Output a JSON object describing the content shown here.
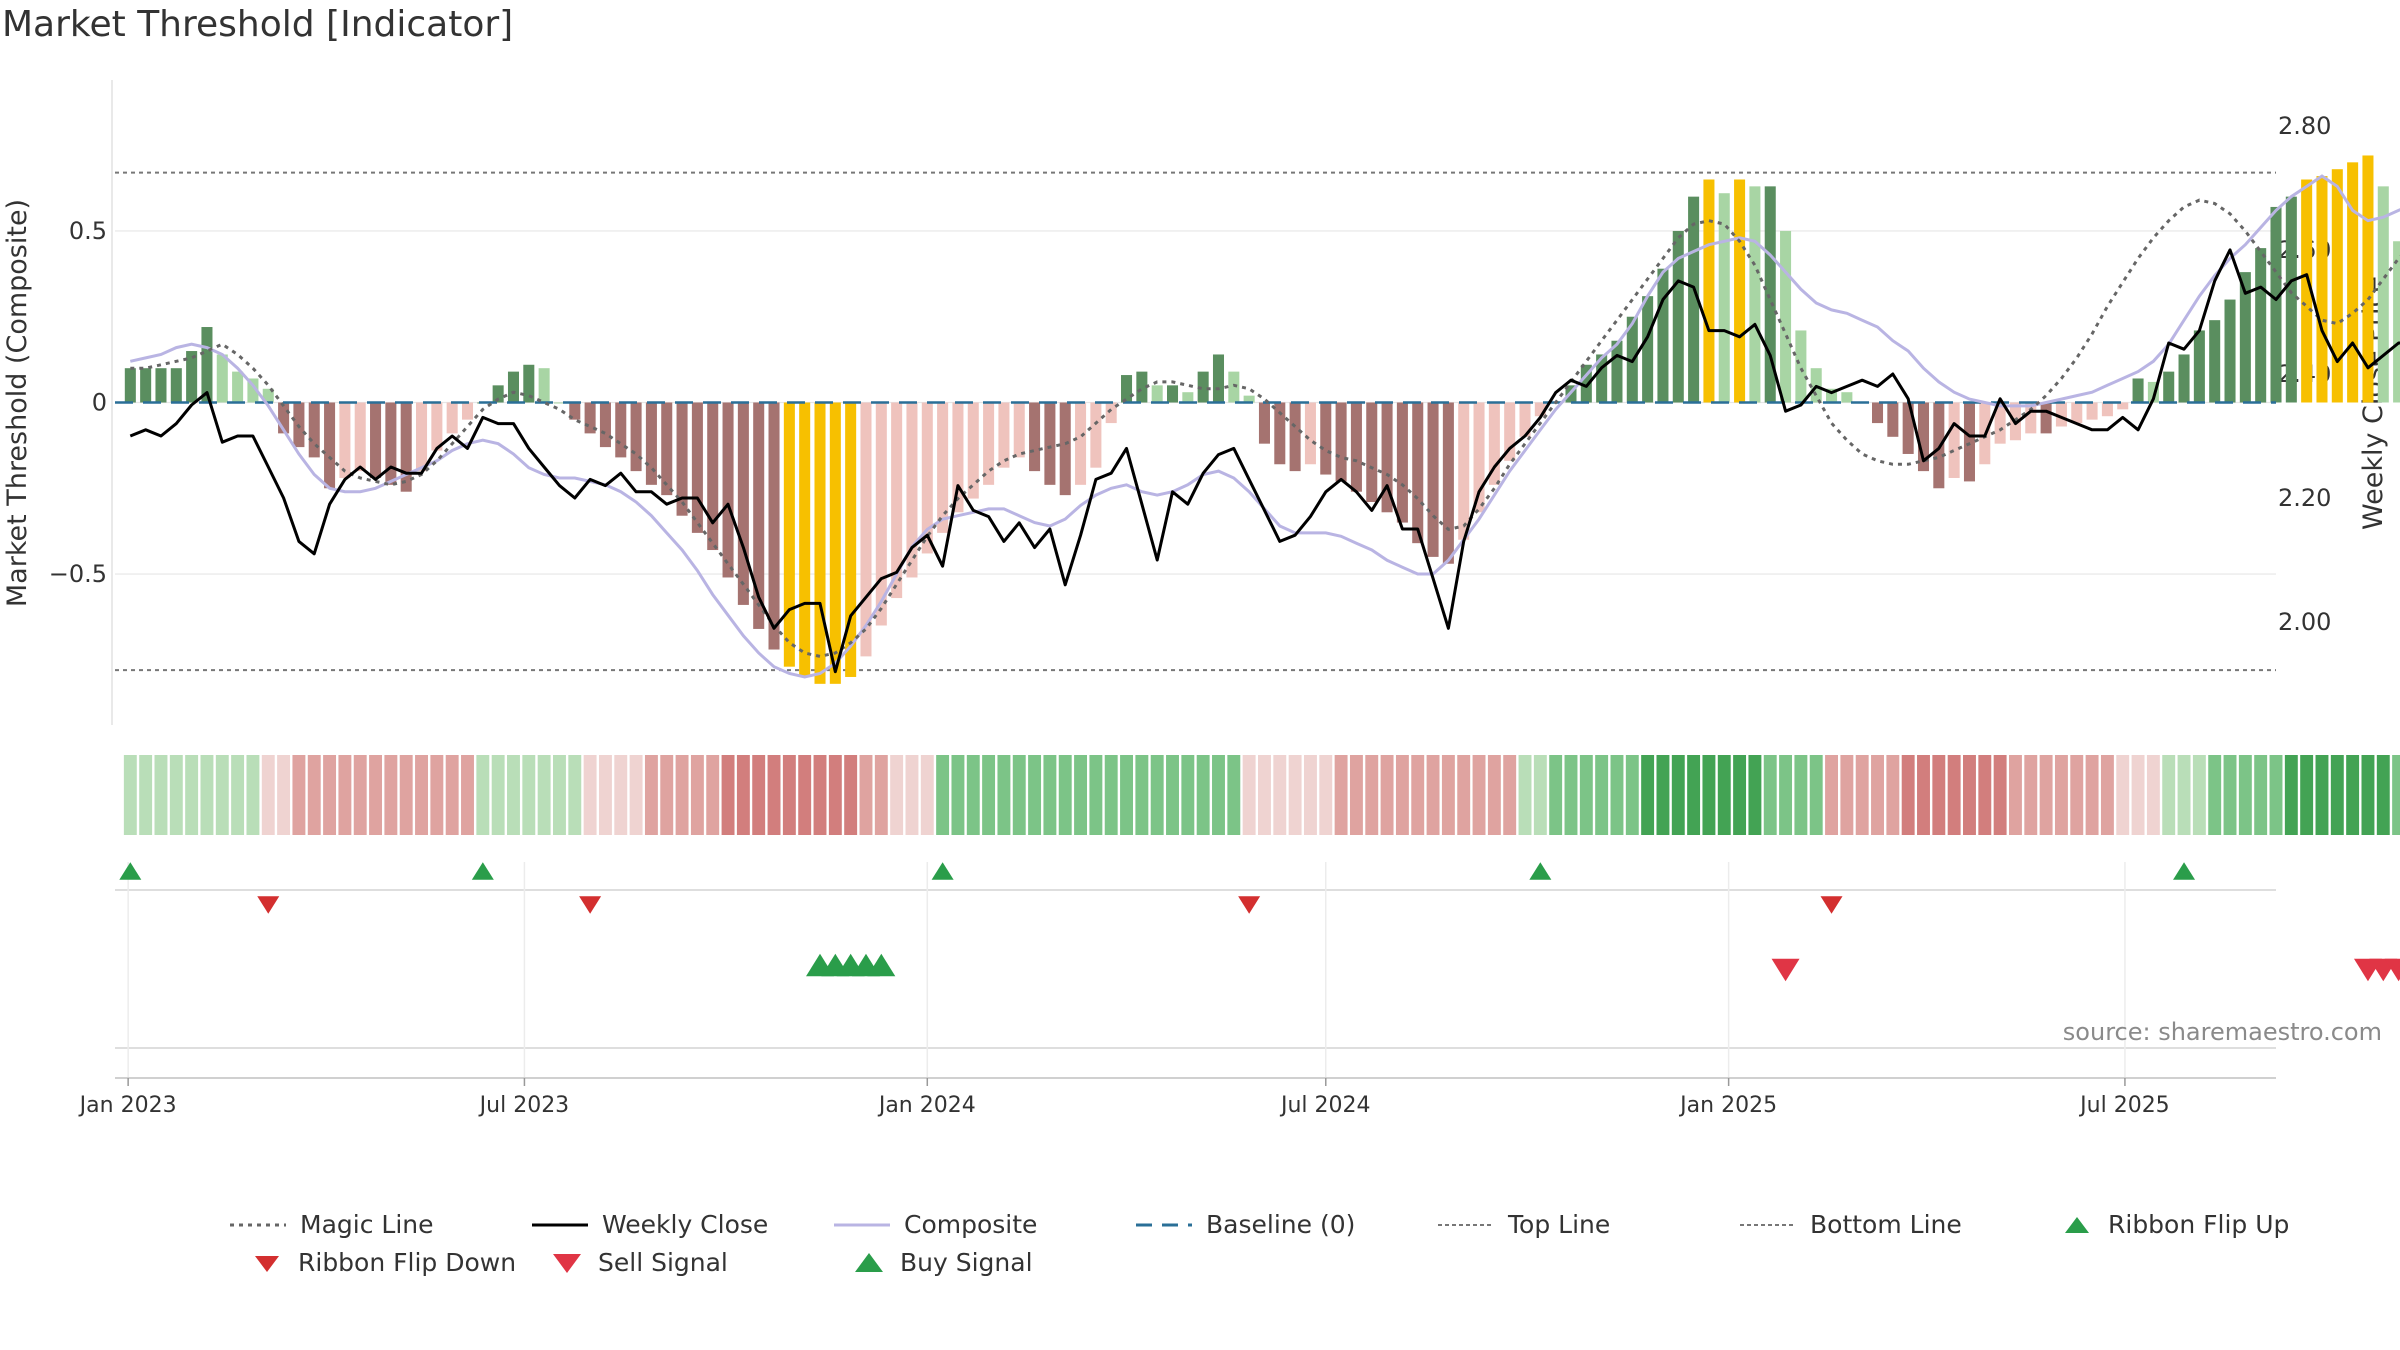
{
  "chart_data": {
    "type": "bar",
    "title": "Market Threshold [Indicator]",
    "ylabel_left": "Market Threshold (Composite)",
    "ylabel_right": "Weekly Close Price",
    "source": "source: sharemaestro.com",
    "x_tick_labels": [
      "Jan 2023",
      "Jul 2023",
      "Jan 2024",
      "Jul 2024",
      "Jan 2025",
      "Jul 2025"
    ],
    "x_ticks": [
      "2023-01-01",
      "2023-07-01",
      "2024-01-01",
      "2024-07-01",
      "2025-01-01",
      "2025-07-01"
    ],
    "x_range": [
      "2022-12-26",
      "2025-09-08"
    ],
    "left_y_ticks": [
      0.5,
      0,
      -0.5
    ],
    "left_y_tick_labels": [
      "0.5",
      "0",
      "−0.5"
    ],
    "left_ylim": [
      -0.94,
      0.94
    ],
    "right_y_ticks": [
      2.8,
      2.6,
      2.4,
      2.2,
      2.0
    ],
    "right_y_tick_labels": [
      "2.80",
      "2.60",
      "2.40",
      "2.20",
      "2.00"
    ],
    "right_ylim": [
      1.834,
      2.874
    ],
    "top_line": 0.67,
    "bottom_line": -0.78,
    "baseline": 0,
    "composite_bars": [
      0.1,
      0.1,
      0.1,
      0.1,
      0.15,
      0.22,
      0.14,
      0.09,
      0.07,
      0.04,
      -0.09,
      -0.13,
      -0.16,
      -0.25,
      -0.22,
      -0.2,
      -0.22,
      -0.24,
      -0.26,
      -0.2,
      -0.14,
      -0.09,
      -0.05,
      0.0,
      0.05,
      0.09,
      0.11,
      0.1,
      0.0,
      -0.05,
      -0.09,
      -0.13,
      -0.16,
      -0.2,
      -0.24,
      -0.27,
      -0.33,
      -0.38,
      -0.43,
      -0.51,
      -0.59,
      -0.66,
      -0.72,
      -0.77,
      -0.8,
      -0.82,
      -0.82,
      -0.8,
      -0.74,
      -0.65,
      -0.57,
      -0.51,
      -0.44,
      -0.38,
      -0.32,
      -0.28,
      -0.24,
      -0.19,
      -0.16,
      -0.2,
      -0.24,
      -0.27,
      -0.24,
      -0.19,
      -0.06,
      0.08,
      0.09,
      0.05,
      0.05,
      0.03,
      0.09,
      0.14,
      0.09,
      0.02,
      -0.12,
      -0.18,
      -0.2,
      -0.18,
      -0.21,
      -0.23,
      -0.26,
      -0.29,
      -0.32,
      -0.35,
      -0.41,
      -0.45,
      -0.47,
      -0.4,
      -0.32,
      -0.24,
      -0.17,
      -0.1,
      -0.04,
      0.0,
      0.05,
      0.11,
      0.14,
      0.18,
      0.25,
      0.31,
      0.39,
      0.5,
      0.6,
      0.65,
      0.61,
      0.65,
      0.63,
      0.63,
      0.5,
      0.21,
      0.1,
      0.04,
      0.03,
      0.0,
      -0.06,
      -0.1,
      -0.15,
      -0.2,
      -0.25,
      -0.22,
      -0.23,
      -0.18,
      -0.12,
      -0.11,
      -0.09,
      -0.09,
      -0.07,
      -0.06,
      -0.05,
      -0.04,
      -0.02,
      0.07,
      0.06,
      0.09,
      0.14,
      0.21,
      0.24,
      0.3,
      0.38,
      0.45,
      0.57,
      0.6,
      0.65,
      0.66,
      0.68,
      0.7,
      0.72,
      0.63,
      0.47,
      0.4,
      0.3,
      0.21,
      0.17,
      0.13,
      0.11,
      0.17,
      0.26,
      0.34,
      0.4,
      0.46,
      0.52,
      0.59
    ],
    "composite_bar_style": {
      "dark_green": "#5a8e5f",
      "light_green": "#a8d5a4",
      "dark_red": "#a57370",
      "light_red": "#efc3bd",
      "extreme": "#f7c000"
    },
    "weekly_close": [
      2.3,
      2.31,
      2.3,
      2.32,
      2.35,
      2.37,
      2.29,
      2.3,
      2.3,
      2.25,
      2.2,
      2.13,
      2.11,
      2.19,
      2.23,
      2.25,
      2.23,
      2.25,
      2.24,
      2.24,
      2.28,
      2.3,
      2.28,
      2.33,
      2.32,
      2.32,
      2.28,
      2.25,
      2.22,
      2.2,
      2.23,
      2.22,
      2.24,
      2.21,
      2.21,
      2.19,
      2.2,
      2.2,
      2.16,
      2.19,
      2.12,
      2.04,
      1.99,
      2.02,
      2.03,
      2.03,
      1.92,
      2.01,
      2.04,
      2.07,
      2.08,
      2.12,
      2.14,
      2.09,
      2.22,
      2.18,
      2.17,
      2.13,
      2.16,
      2.12,
      2.15,
      2.06,
      2.14,
      2.23,
      2.24,
      2.28,
      2.19,
      2.1,
      2.21,
      2.19,
      2.24,
      2.27,
      2.28,
      2.23,
      2.18,
      2.13,
      2.14,
      2.17,
      2.21,
      2.23,
      2.21,
      2.18,
      2.22,
      2.15,
      2.15,
      2.07,
      1.99,
      2.13,
      2.21,
      2.25,
      2.28,
      2.3,
      2.33,
      2.37,
      2.39,
      2.38,
      2.41,
      2.43,
      2.42,
      2.46,
      2.52,
      2.55,
      2.54,
      2.47,
      2.47,
      2.46,
      2.48,
      2.43,
      2.34,
      2.35,
      2.38,
      2.37,
      2.38,
      2.39,
      2.38,
      2.4,
      2.36,
      2.26,
      2.28,
      2.32,
      2.3,
      2.3,
      2.36,
      2.32,
      2.34,
      2.34,
      2.33,
      2.32,
      2.31,
      2.31,
      2.33,
      2.31,
      2.36,
      2.45,
      2.44,
      2.47,
      2.55,
      2.6,
      2.53,
      2.54,
      2.52,
      2.55,
      2.56,
      2.47,
      2.42,
      2.45,
      2.41,
      2.43,
      2.45,
      2.45,
      2.49,
      2.52,
      2.54,
      2.58,
      2.64,
      2.72,
      2.73,
      2.78,
      2.76
    ],
    "composite_line": [
      0.12,
      0.13,
      0.14,
      0.16,
      0.17,
      0.16,
      0.14,
      0.1,
      0.05,
      -0.01,
      -0.08,
      -0.15,
      -0.21,
      -0.25,
      -0.26,
      -0.26,
      -0.25,
      -0.23,
      -0.21,
      -0.19,
      -0.17,
      -0.14,
      -0.12,
      -0.11,
      -0.12,
      -0.15,
      -0.19,
      -0.21,
      -0.22,
      -0.22,
      -0.23,
      -0.24,
      -0.26,
      -0.29,
      -0.33,
      -0.38,
      -0.43,
      -0.49,
      -0.56,
      -0.62,
      -0.68,
      -0.73,
      -0.77,
      -0.79,
      -0.8,
      -0.79,
      -0.76,
      -0.71,
      -0.65,
      -0.58,
      -0.5,
      -0.42,
      -0.37,
      -0.34,
      -0.33,
      -0.32,
      -0.31,
      -0.31,
      -0.33,
      -0.35,
      -0.36,
      -0.34,
      -0.3,
      -0.27,
      -0.25,
      -0.24,
      -0.26,
      -0.27,
      -0.26,
      -0.24,
      -0.21,
      -0.2,
      -0.22,
      -0.26,
      -0.31,
      -0.36,
      -0.38,
      -0.38,
      -0.38,
      -0.39,
      -0.41,
      -0.43,
      -0.46,
      -0.48,
      -0.5,
      -0.5,
      -0.46,
      -0.4,
      -0.34,
      -0.27,
      -0.2,
      -0.14,
      -0.08,
      -0.02,
      0.03,
      0.08,
      0.13,
      0.17,
      0.23,
      0.31,
      0.38,
      0.42,
      0.44,
      0.46,
      0.47,
      0.48,
      0.47,
      0.43,
      0.38,
      0.33,
      0.29,
      0.27,
      0.26,
      0.24,
      0.22,
      0.18,
      0.15,
      0.1,
      0.06,
      0.03,
      0.01,
      0.0,
      -0.01,
      -0.01,
      -0.01,
      0.0,
      0.01,
      0.02,
      0.03,
      0.05,
      0.07,
      0.09,
      0.12,
      0.17,
      0.24,
      0.31,
      0.37,
      0.42,
      0.46,
      0.51,
      0.56,
      0.6,
      0.63,
      0.66,
      0.63,
      0.56,
      0.53,
      0.54,
      0.56,
      0.58,
      0.61,
      0.66,
      0.71,
      0.77,
      0.83,
      0.88,
      0.92,
      0.96
    ],
    "magic_line": [
      0.1,
      0.1,
      0.11,
      0.12,
      0.13,
      0.15,
      0.17,
      0.14,
      0.1,
      0.05,
      -0.01,
      -0.07,
      -0.12,
      -0.16,
      -0.2,
      -0.22,
      -0.23,
      -0.24,
      -0.23,
      -0.21,
      -0.17,
      -0.12,
      -0.07,
      -0.02,
      0.01,
      0.03,
      0.02,
      0.0,
      -0.02,
      -0.05,
      -0.07,
      -0.09,
      -0.12,
      -0.15,
      -0.19,
      -0.24,
      -0.29,
      -0.35,
      -0.41,
      -0.47,
      -0.53,
      -0.59,
      -0.65,
      -0.7,
      -0.73,
      -0.74,
      -0.73,
      -0.7,
      -0.66,
      -0.6,
      -0.53,
      -0.46,
      -0.39,
      -0.33,
      -0.28,
      -0.24,
      -0.2,
      -0.17,
      -0.15,
      -0.14,
      -0.13,
      -0.12,
      -0.1,
      -0.06,
      -0.02,
      0.01,
      0.04,
      0.06,
      0.06,
      0.05,
      0.04,
      0.04,
      0.05,
      0.04,
      0.01,
      -0.03,
      -0.07,
      -0.11,
      -0.14,
      -0.16,
      -0.17,
      -0.19,
      -0.21,
      -0.24,
      -0.28,
      -0.33,
      -0.37,
      -0.36,
      -0.31,
      -0.25,
      -0.18,
      -0.12,
      -0.06,
      0.0,
      0.06,
      0.12,
      0.18,
      0.24,
      0.3,
      0.36,
      0.42,
      0.48,
      0.52,
      0.53,
      0.52,
      0.47,
      0.4,
      0.3,
      0.2,
      0.1,
      0.02,
      -0.06,
      -0.11,
      -0.15,
      -0.17,
      -0.18,
      -0.18,
      -0.17,
      -0.16,
      -0.14,
      -0.12,
      -0.1,
      -0.08,
      -0.05,
      -0.02,
      0.02,
      0.07,
      0.13,
      0.2,
      0.28,
      0.35,
      0.42,
      0.48,
      0.53,
      0.57,
      0.59,
      0.58,
      0.55,
      0.5,
      0.44,
      0.38,
      0.32,
      0.28,
      0.24,
      0.23,
      0.26,
      0.3,
      0.36,
      0.42,
      0.46,
      0.48,
      0.5,
      0.51,
      0.52,
      0.52,
      0.52
    ],
    "ribbon": [
      1,
      1,
      1,
      1,
      1,
      1,
      1,
      1,
      1,
      -1,
      -1,
      -2,
      -2,
      -2,
      -2,
      -2,
      -2,
      -2,
      -2,
      -2,
      -2,
      -2,
      -2,
      1,
      1,
      1,
      1,
      1,
      1,
      1,
      -1,
      -1,
      -1,
      -1,
      -2,
      -2,
      -2,
      -2,
      -2,
      -3,
      -3,
      -3,
      -3,
      -3,
      -3,
      -3,
      -3,
      -3,
      -2,
      -2,
      -1,
      -1,
      -1,
      2,
      2,
      2,
      2,
      2,
      2,
      2,
      2,
      2,
      2,
      2,
      2,
      2,
      2,
      2,
      2,
      2,
      2,
      2,
      2,
      -1,
      -1,
      -1,
      -1,
      -1,
      -1,
      -2,
      -2,
      -2,
      -2,
      -2,
      -2,
      -2,
      -2,
      -2,
      -2,
      -2,
      -2,
      1,
      1,
      2,
      2,
      2,
      2,
      2,
      2,
      3,
      3,
      3,
      3,
      3,
      3,
      3,
      3,
      2,
      2,
      2,
      2,
      -2,
      -2,
      -2,
      -2,
      -2,
      -3,
      -3,
      -3,
      -3,
      -3,
      -3,
      -3,
      -2,
      -2,
      -2,
      -2,
      -2,
      -2,
      -2,
      -1,
      -1,
      -1,
      1,
      1,
      1,
      2,
      2,
      2,
      2,
      2,
      3,
      3,
      3,
      3,
      3,
      3,
      3,
      2,
      2,
      2,
      2,
      -2,
      -2,
      -2,
      -2,
      -2,
      -2,
      -2,
      -2,
      1,
      1,
      1
    ],
    "ribbon_flip_up_weeks": [
      0,
      23,
      53,
      92,
      134,
      157
    ],
    "ribbon_flip_down_weeks": [
      9,
      30,
      73,
      111,
      150
    ],
    "buy_signal_weeks": [
      45,
      46,
      47,
      48,
      49
    ],
    "sell_signal_weeks": [
      108,
      146,
      147,
      148,
      149
    ]
  },
  "colors": {
    "magic_line": "#666666",
    "weekly_close": "#000000",
    "composite": "#b9b4e3",
    "baseline": "#2a6f97",
    "ref_lines": "#777777",
    "flip_up": "#2a9d4a",
    "flip_down": "#d32f2f",
    "buy": "#2a9d4a",
    "sell": "#e03545",
    "grid": "#e6e6e6"
  },
  "legend": [
    {
      "key": "magic",
      "label": "Magic Line"
    },
    {
      "key": "close",
      "label": "Weekly Close"
    },
    {
      "key": "composite",
      "label": "Composite"
    },
    {
      "key": "baseline",
      "label": "Baseline (0)"
    },
    {
      "key": "top",
      "label": "Top Line"
    },
    {
      "key": "bottom",
      "label": "Bottom Line"
    },
    {
      "key": "flipup",
      "label": "Ribbon Flip Up"
    },
    {
      "key": "flipdown",
      "label": "Ribbon Flip Down"
    },
    {
      "key": "sell",
      "label": "Sell Signal"
    },
    {
      "key": "buy",
      "label": "Buy Signal"
    }
  ]
}
